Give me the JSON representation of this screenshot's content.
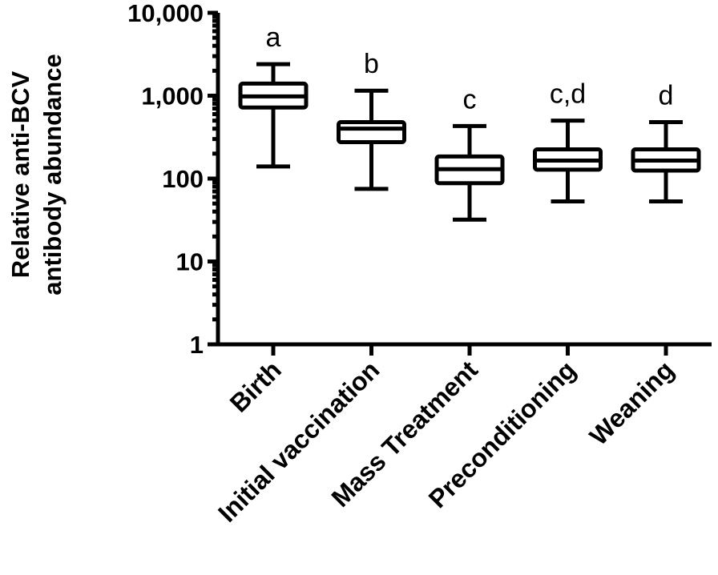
{
  "chart_data": {
    "type": "box",
    "ylabel_lines": [
      "Relative anti-BCV",
      "antibody abundance"
    ],
    "yscale": "log",
    "ylim": [
      1,
      10000
    ],
    "yticks": [
      {
        "value": 1,
        "label": "1"
      },
      {
        "value": 10,
        "label": "10"
      },
      {
        "value": 100,
        "label": "100"
      },
      {
        "value": 1000,
        "label": "1,000"
      },
      {
        "value": 10000,
        "label": "10,000"
      }
    ],
    "grid": false,
    "categories": [
      "Birth",
      "Initial vaccination",
      "Mass Treatment",
      "Preconditioning",
      "Weaning"
    ],
    "boxes": [
      {
        "min": 140,
        "q1": 720,
        "median": 980,
        "q3": 1400,
        "max": 2400,
        "significance": "a"
      },
      {
        "min": 75,
        "q1": 275,
        "median": 400,
        "q3": 480,
        "max": 1150,
        "significance": "b"
      },
      {
        "min": 32,
        "q1": 88,
        "median": 130,
        "q3": 185,
        "max": 430,
        "significance": "c"
      },
      {
        "min": 53,
        "q1": 128,
        "median": 165,
        "q3": 225,
        "max": 500,
        "significance": "c,d"
      },
      {
        "min": 53,
        "q1": 125,
        "median": 165,
        "q3": 225,
        "max": 480,
        "significance": "d"
      }
    ]
  }
}
